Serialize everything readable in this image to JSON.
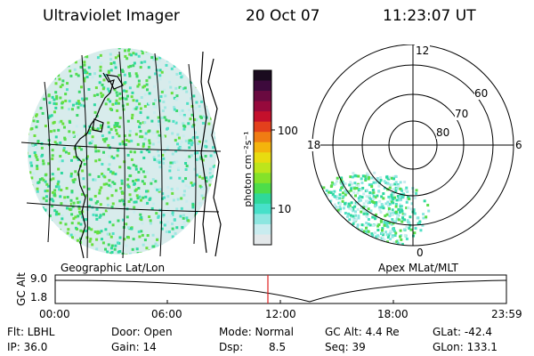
{
  "header": {
    "instrument": "Ultraviolet Imager",
    "date": "20 Oct 07",
    "time": "11:23:07 UT"
  },
  "colorbar": {
    "unit_label": "photon cm⁻²s⁻¹",
    "tick_labels": [
      "100",
      "10"
    ],
    "colors": [
      "#1a0b1f",
      "#3d0a3c",
      "#6a0a40",
      "#96093c",
      "#c4102c",
      "#e3401c",
      "#f07c13",
      "#f4b40c",
      "#e8dc10",
      "#bde51c",
      "#84e22a",
      "#4ddd4a",
      "#2fd89a",
      "#47e0c9",
      "#8de6e0",
      "#c9ecef",
      "#e3e8ea"
    ]
  },
  "geo_panel": {
    "label": "Geographic Lat/Lon"
  },
  "polar_panel": {
    "label": "Apex MLat/MLT",
    "mlt_labels": {
      "top": "12",
      "left": "18",
      "right": "6",
      "bottom": "0"
    },
    "lat_labels": [
      "60",
      "70",
      "80"
    ]
  },
  "timeline": {
    "y_axis_label": "GC Alt",
    "y_ticks": [
      "9.0",
      "1.8"
    ],
    "x_ticks": [
      "00:00",
      "06:00",
      "12:00",
      "18:00",
      "23:59"
    ],
    "current_time_marker_color": "#e02020"
  },
  "status": {
    "filter": "Flt: LBHL",
    "door": "Door: Open",
    "mode": "Mode: Normal",
    "gc_alt": "GC Alt: 4.4 Re",
    "glat": "GLat: -42.4",
    "ip": "IP: 36.0",
    "gain": "Gain: 14",
    "dsp_label": "Dsp:",
    "dsp_value": "8.5",
    "seq": "Seq: 39",
    "glon": "GLon: 133.1"
  }
}
